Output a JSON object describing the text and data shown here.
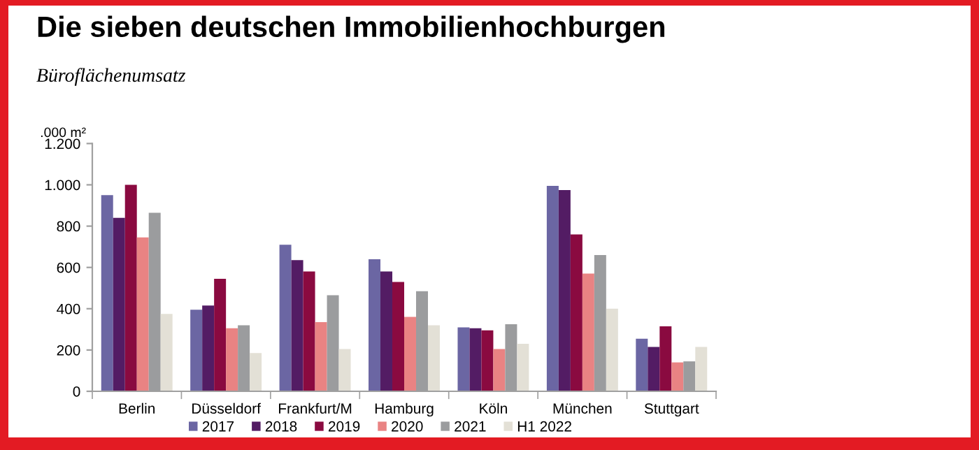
{
  "chart_data": {
    "type": "bar",
    "title": "Die sieben deutschen Immobilienhochburgen",
    "subtitle": "Büroflächenumsatz",
    "ylabel": ".000 m²",
    "categories": [
      "Berlin",
      "Düsseldorf",
      "Frankfurt/M",
      "Hamburg",
      "Köln",
      "München",
      "Stuttgart"
    ],
    "series": [
      {
        "name": "2017",
        "color": "#6b66a3",
        "values": [
          950,
          395,
          710,
          640,
          310,
          995,
          255
        ]
      },
      {
        "name": "2018",
        "color": "#531c64",
        "values": [
          840,
          415,
          635,
          580,
          305,
          975,
          215
        ]
      },
      {
        "name": "2019",
        "color": "#8a0a40",
        "values": [
          1000,
          545,
          580,
          530,
          295,
          760,
          315
        ]
      },
      {
        "name": "2020",
        "color": "#e98383",
        "values": [
          745,
          305,
          335,
          360,
          205,
          570,
          140
        ]
      },
      {
        "name": "2021",
        "color": "#9b9c9e",
        "values": [
          865,
          320,
          465,
          485,
          325,
          660,
          145
        ]
      },
      {
        "name": "H1 2022",
        "color": "#e3e0d6",
        "values": [
          375,
          185,
          205,
          320,
          230,
          400,
          215
        ]
      }
    ],
    "ylim": [
      0,
      1200
    ],
    "yticks": [
      0,
      200,
      400,
      600,
      800,
      {
        "value": 1000,
        "label": "1.000"
      },
      {
        "value": 1200,
        "label": "1.200"
      }
    ],
    "legend": "bottom"
  }
}
